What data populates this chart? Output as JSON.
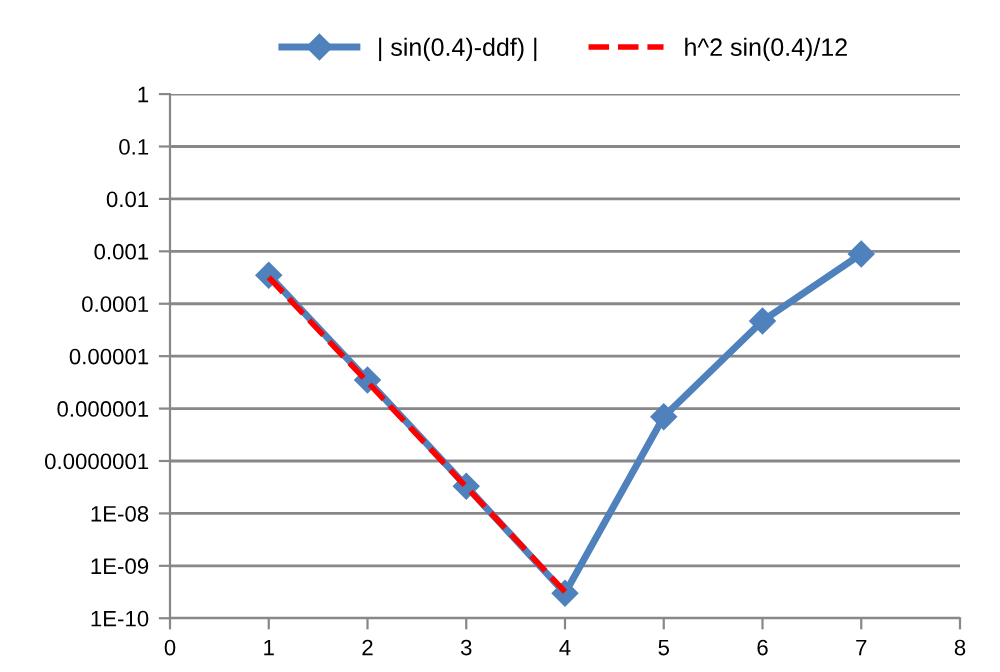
{
  "chart_data": {
    "type": "line",
    "log": "y",
    "grid": "y",
    "legend": "top",
    "xlim": [
      0,
      8
    ],
    "xticks": [
      0,
      1,
      2,
      3,
      4,
      5,
      6,
      7,
      8
    ],
    "ylim": [
      1e-10,
      1
    ],
    "yticks": [
      {
        "value": 1e-10,
        "label": "1E-10"
      },
      {
        "value": 1e-09,
        "label": "1E-09"
      },
      {
        "value": 1e-08,
        "label": "1E-08"
      },
      {
        "value": 1e-07,
        "label": "0.0000001"
      },
      {
        "value": 1e-06,
        "label": "0.000001"
      },
      {
        "value": 1e-05,
        "label": "0.00001"
      },
      {
        "value": 0.0001,
        "label": "0.0001"
      },
      {
        "value": 0.001,
        "label": "0.001"
      },
      {
        "value": 0.01,
        "label": "0.01"
      },
      {
        "value": 0.1,
        "label": "0.1"
      },
      {
        "value": 1,
        "label": "1"
      }
    ],
    "marker": "diamond",
    "line_style": "solid",
    "series": [
      {
        "name": "| sin(0.4)-ddf) |",
        "color": "#4f81bd",
        "x": [
          1,
          2,
          3,
          4,
          5,
          6,
          7
        ],
        "values": [
          0.00035,
          3.5e-06,
          3.3e-08,
          3e-10,
          7e-07,
          4.7e-05,
          0.00089
        ]
      },
      {
        "name": "h^2 sin(0.4)/12",
        "color": "#ff0000",
        "marker": "none",
        "line_style": "dashed",
        "x": [
          1,
          2,
          3,
          4
        ],
        "values": [
          0.00032,
          3.2e-06,
          3.2e-08,
          3.2e-10
        ]
      }
    ]
  }
}
